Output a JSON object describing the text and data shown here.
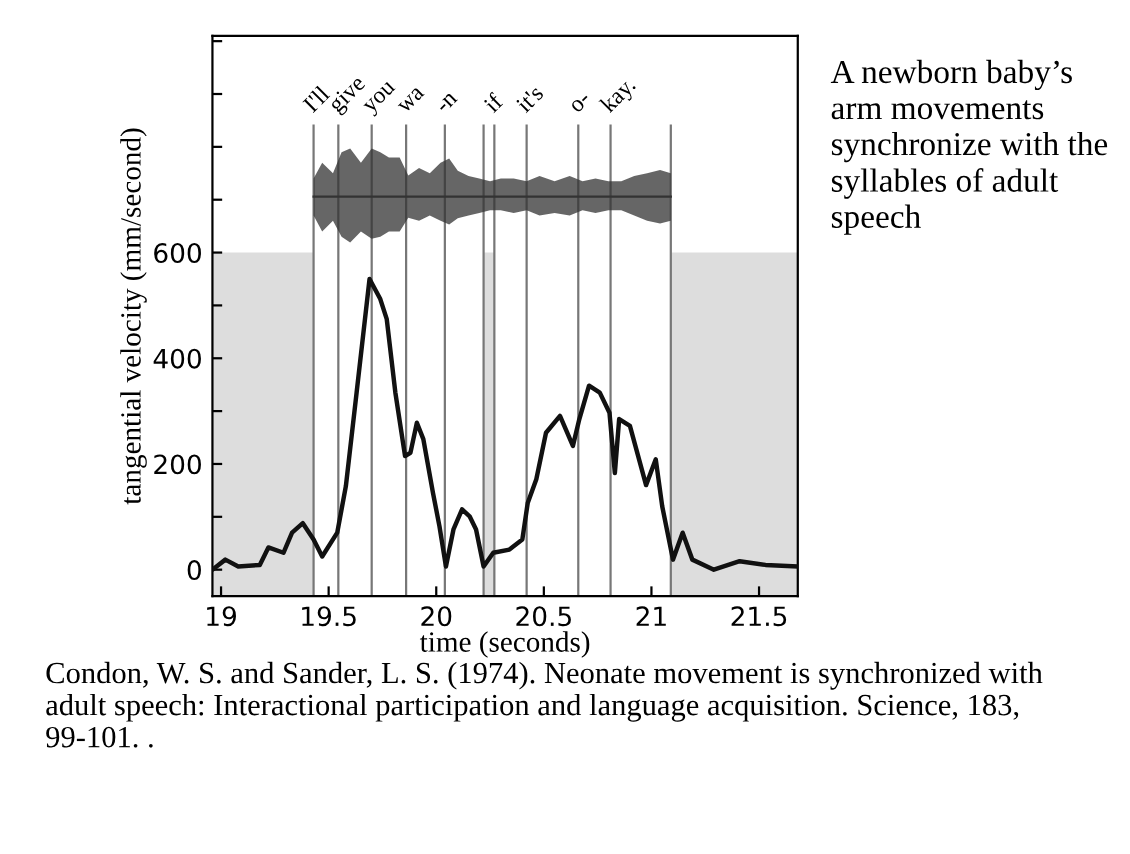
{
  "chart_data": {
    "type": "line",
    "xlabel": "time (seconds)",
    "ylabel": "tangential velocity (mm/second)",
    "xlim": [
      18.96,
      21.68
    ],
    "ylim": [
      -50,
      1010
    ],
    "xticks": [
      19,
      19.5,
      20,
      20.5,
      21,
      21.5
    ],
    "yticks": [
      0,
      {
        "value": 100,
        "label": null
      },
      200,
      {
        "value": 300,
        "label": null
      },
      400,
      {
        "value": 500,
        "label": null
      },
      600,
      {
        "value": 700,
        "label": null
      },
      {
        "value": 800,
        "label": null
      },
      {
        "value": 900,
        "label": null
      },
      {
        "value": 1000,
        "label": null
      }
    ],
    "grid": false,
    "series": [
      {
        "color": "#111111",
        "x": [
          18.96,
          19.02,
          19.08,
          19.18,
          19.22,
          19.29,
          19.33,
          19.38,
          19.43,
          19.47,
          19.54,
          19.58,
          19.63,
          19.69,
          19.74,
          19.77,
          19.81,
          19.855,
          19.88,
          19.91,
          19.94,
          19.985,
          20.015,
          20.045,
          20.08,
          20.12,
          20.155,
          20.185,
          20.22,
          20.265,
          20.34,
          20.4,
          20.425,
          20.465,
          20.51,
          20.575,
          20.635,
          20.665,
          20.71,
          20.76,
          20.805,
          20.83,
          20.85,
          20.9,
          20.975,
          21.02,
          21.05,
          21.1,
          21.145,
          21.19,
          21.29,
          21.41,
          21.53,
          21.68
        ],
        "values": [
          0,
          19,
          6,
          9,
          42,
          32,
          70,
          88,
          57,
          25,
          70,
          158,
          335,
          550,
          512,
          474,
          335,
          215,
          221,
          278,
          247,
          145,
          82,
          6,
          76,
          114,
          101,
          76,
          6,
          32,
          38,
          57,
          126,
          171,
          259,
          291,
          234,
          285,
          348,
          335,
          297,
          183,
          285,
          272,
          160,
          209,
          120,
          19,
          70,
          19,
          0,
          16,
          9,
          6
        ]
      },
      {
        "color": "#333333",
        "x": [
          19.43,
          19.47,
          19.52,
          19.56,
          19.6,
          19.65,
          19.7,
          19.74,
          19.78,
          19.83,
          19.87,
          19.92,
          19.97,
          20.02,
          20.06,
          20.1,
          20.15,
          20.2,
          20.25,
          20.3,
          20.36,
          20.42,
          20.48,
          20.55,
          20.62,
          20.68,
          20.74,
          20.8,
          20.86,
          20.92,
          20.98,
          21.04,
          21.09
        ],
        "values": [
          706,
          706,
          706,
          706,
          706,
          706,
          706,
          706,
          706,
          706,
          706,
          706,
          706,
          706,
          706,
          706,
          706,
          706,
          706,
          706,
          706,
          706,
          706,
          706,
          706,
          706,
          706,
          706,
          706,
          706,
          706,
          706,
          706
        ],
        "lower": [
          670,
          640,
          660,
          630,
          619,
          640,
          626,
          630,
          640,
          640,
          666,
          660,
          670,
          660,
          653,
          665,
          670,
          675,
          680,
          680,
          675,
          680,
          670,
          675,
          670,
          680,
          675,
          680,
          680,
          670,
          660,
          655,
          660
        ],
        "upper": [
          740,
          770,
          750,
          790,
          797,
          770,
          797,
          790,
          780,
          780,
          746,
          760,
          750,
          770,
          778,
          755,
          745,
          740,
          735,
          740,
          740,
          735,
          745,
          735,
          745,
          735,
          740,
          735,
          735,
          745,
          750,
          756,
          750
        ]
      }
    ],
    "ref_lines": [
      {
        "axis": "x",
        "value": 19.43,
        "color": "#777777",
        "label": "I'll"
      },
      {
        "axis": "x",
        "value": 19.545,
        "color": "#777777",
        "label": "give"
      },
      {
        "axis": "x",
        "value": 19.7,
        "color": "#777777",
        "label": "you"
      },
      {
        "axis": "x",
        "value": 19.86,
        "color": "#777777",
        "label": "wa"
      },
      {
        "axis": "x",
        "value": 20.04,
        "color": "#777777",
        "label": "-n"
      },
      {
        "axis": "x",
        "value": 20.22,
        "color": "#777777"
      },
      {
        "axis": "x",
        "value": 20.27,
        "color": "#777777",
        "label": "if"
      },
      {
        "axis": "x",
        "value": 20.42,
        "color": "#777777",
        "label": "it's"
      },
      {
        "axis": "x",
        "value": 20.66,
        "color": "#777777",
        "label": "o-"
      },
      {
        "axis": "x",
        "value": 20.81,
        "color": "#777777",
        "label": "kay."
      },
      {
        "axis": "x",
        "value": 21.09,
        "color": "#777777"
      }
    ],
    "bands": [
      {
        "axis": "x",
        "from": 18.96,
        "to": 19.43,
        "color": "#dddddd"
      },
      {
        "axis": "x",
        "from": 20.22,
        "to": 20.27,
        "color": "#dddddd"
      },
      {
        "axis": "x",
        "from": 21.09,
        "to": 21.68,
        "color": "#dddddd"
      }
    ],
    "annotations": [
      "A newborn baby’s arm movements synchronize with the syllables of adult speech",
      "Condon, W. S. and Sander, L. S. (1974). Neonate movement is synchronized with adult speech: Interactional participation and language acquisition. Science, 183, 99-101. ."
    ]
  }
}
